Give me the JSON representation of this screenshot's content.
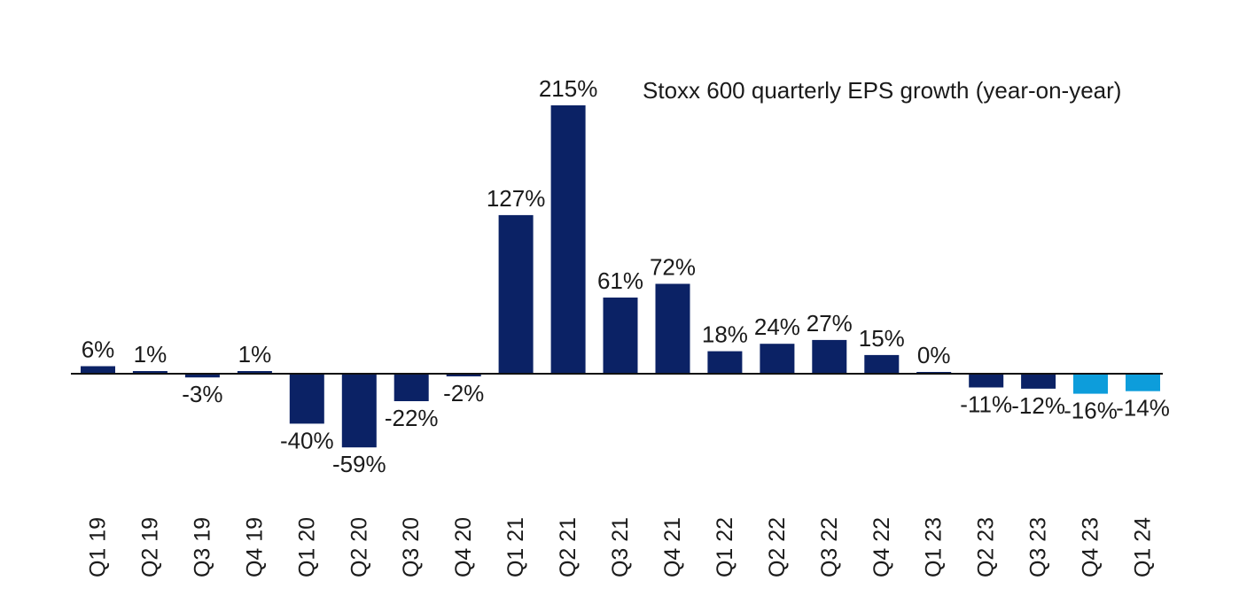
{
  "chart_data": {
    "type": "bar",
    "title": "Stoxx 600 quarterly EPS growth (year-on-year)",
    "xlabel": "",
    "ylabel": "",
    "categories": [
      "Q1 19",
      "Q2 19",
      "Q3 19",
      "Q4 19",
      "Q1 20",
      "Q2 20",
      "Q3 20",
      "Q4 20",
      "Q1 21",
      "Q2 21",
      "Q3 21",
      "Q4 21",
      "Q1 22",
      "Q2 22",
      "Q3 22",
      "Q4 22",
      "Q1 23",
      "Q2 23",
      "Q3 23",
      "Q4 23",
      "Q1 24"
    ],
    "values": [
      6,
      1,
      -3,
      1,
      -40,
      -59,
      -22,
      -2,
      127,
      215,
      61,
      72,
      18,
      24,
      27,
      15,
      0,
      -11,
      -12,
      -16,
      -14
    ],
    "value_labels": [
      "6%",
      "1%",
      "-3%",
      "1%",
      "-40%",
      "-59%",
      "-22%",
      "-2%",
      "127%",
      "215%",
      "61%",
      "72%",
      "18%",
      "24%",
      "27%",
      "15%",
      "0%",
      "-11%",
      "-12%",
      "-16%",
      "-14%"
    ],
    "estimate_flags": [
      false,
      false,
      false,
      false,
      false,
      false,
      false,
      false,
      false,
      false,
      false,
      false,
      false,
      false,
      false,
      false,
      false,
      false,
      false,
      true,
      true
    ],
    "ylim": [
      -60,
      215
    ],
    "grid": false,
    "legend": "none",
    "colors": {
      "actual": "#0b2265",
      "estimate": "#0d9ddb",
      "axis": "#111111"
    }
  }
}
